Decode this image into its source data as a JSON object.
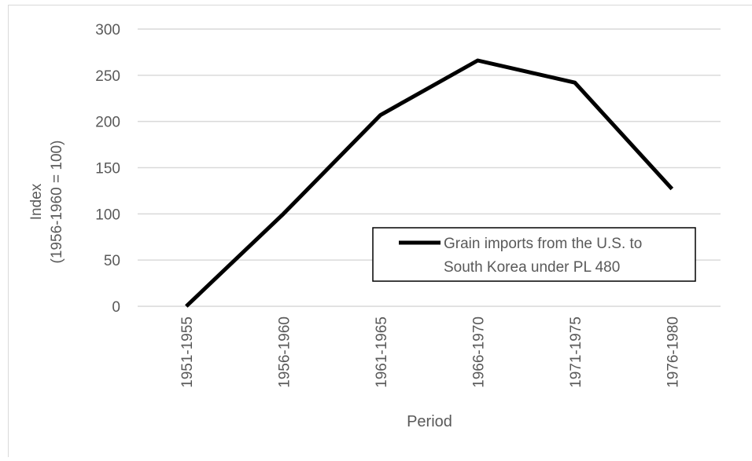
{
  "chart_data": {
    "type": "line",
    "title": "",
    "xlabel": "Period",
    "ylabel_lines": [
      "Index",
      "(1956-1960 = 100)"
    ],
    "categories": [
      "1951-1955",
      "1956-1960",
      "1961-1965",
      "1966-1970",
      "1971-1975",
      "1976-1980"
    ],
    "series": [
      {
        "name": "Grain imports from the U.S. to South Korea under PL 480",
        "name_lines": [
          "Grain imports from the U.S. to",
          "South Korea under PL 480"
        ],
        "values": [
          0,
          100,
          207,
          266,
          242,
          127
        ],
        "color": "#000000"
      }
    ],
    "ylim": [
      0,
      300
    ],
    "yticks": [
      0,
      50,
      100,
      150,
      200,
      250,
      300
    ],
    "grid": true,
    "legend_position": "inside-bottom-right",
    "gridline_color": "#d9d9d9",
    "axis_text_color": "#595959"
  }
}
